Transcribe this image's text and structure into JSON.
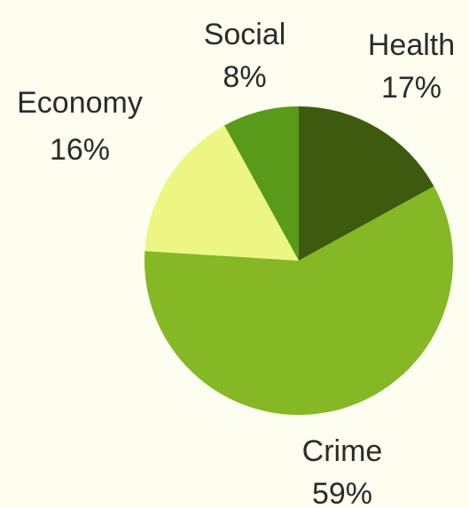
{
  "chart_data": {
    "type": "pie",
    "title": "",
    "start_angle_deg": 0,
    "direction": "clockwise",
    "slices": [
      {
        "label": "Health",
        "value": 17,
        "display": "17%",
        "color": "#3d5a0f"
      },
      {
        "label": "Crime",
        "value": 59,
        "display": "59%",
        "color": "#84b825"
      },
      {
        "label": "Economy",
        "value": 16,
        "display": "16%",
        "color": "#ebf782"
      },
      {
        "label": "Social",
        "value": 8,
        "display": "8%",
        "color": "#5a9a1b"
      }
    ]
  }
}
